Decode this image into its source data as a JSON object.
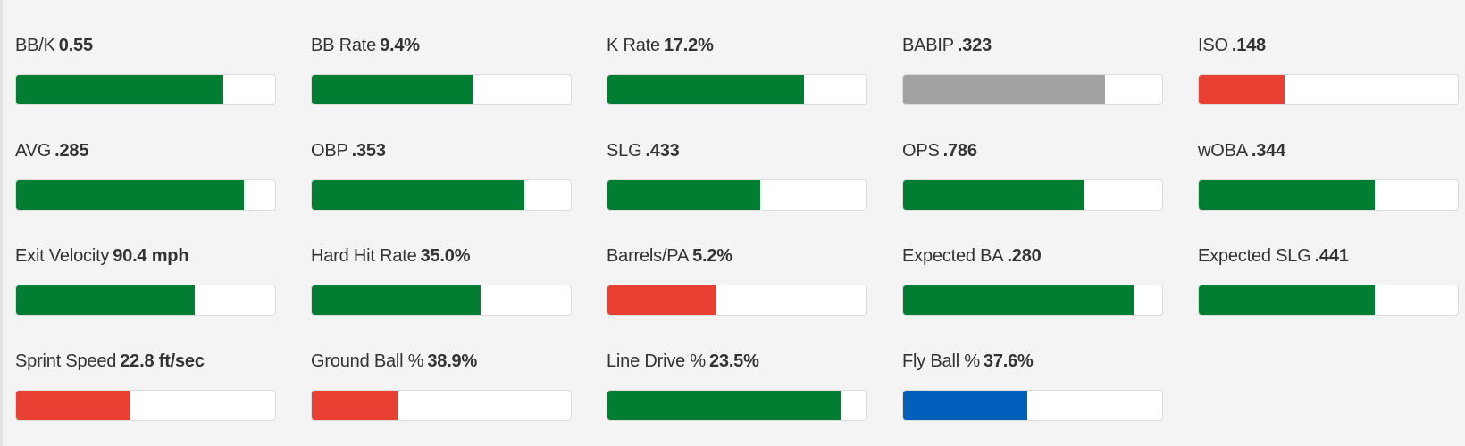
{
  "colors": {
    "green": "#017e32",
    "red": "#e84133",
    "gray": "#a2a2a2",
    "blue": "#0060bb",
    "track": "#ffffff",
    "background": "#f4f4f4"
  },
  "stats": [
    {
      "name": "BB/K",
      "value": "0.55",
      "fill_fraction": 0.8,
      "color": "#017e32"
    },
    {
      "name": "BB Rate",
      "value": "9.4%",
      "fill_fraction": 0.62,
      "color": "#017e32"
    },
    {
      "name": "K Rate",
      "value": "17.2%",
      "fill_fraction": 0.76,
      "color": "#017e32"
    },
    {
      "name": "BABIP",
      "value": ".323",
      "fill_fraction": 0.78,
      "color": "#a2a2a2"
    },
    {
      "name": "ISO",
      "value": ".148",
      "fill_fraction": 0.33,
      "color": "#e84133"
    },
    {
      "name": "AVG",
      "value": ".285",
      "fill_fraction": 0.88,
      "color": "#017e32"
    },
    {
      "name": "OBP",
      "value": ".353",
      "fill_fraction": 0.82,
      "color": "#017e32"
    },
    {
      "name": "SLG",
      "value": ".433",
      "fill_fraction": 0.59,
      "color": "#017e32"
    },
    {
      "name": "OPS",
      "value": ".786",
      "fill_fraction": 0.7,
      "color": "#017e32"
    },
    {
      "name": "wOBA",
      "value": ".344",
      "fill_fraction": 0.68,
      "color": "#017e32"
    },
    {
      "name": "Exit Velocity",
      "value": "90.4 mph",
      "fill_fraction": 0.69,
      "color": "#017e32"
    },
    {
      "name": "Hard Hit Rate",
      "value": "35.0%",
      "fill_fraction": 0.65,
      "color": "#017e32"
    },
    {
      "name": "Barrels/PA",
      "value": "5.2%",
      "fill_fraction": 0.42,
      "color": "#e84133"
    },
    {
      "name": "Expected BA",
      "value": ".280",
      "fill_fraction": 0.89,
      "color": "#017e32"
    },
    {
      "name": "Expected SLG",
      "value": ".441",
      "fill_fraction": 0.68,
      "color": "#017e32"
    },
    {
      "name": "Sprint Speed",
      "value": "22.8 ft/sec",
      "fill_fraction": 0.44,
      "color": "#e84133"
    },
    {
      "name": "Ground Ball %",
      "value": "38.9%",
      "fill_fraction": 0.33,
      "color": "#e84133"
    },
    {
      "name": "Line Drive %",
      "value": "23.5%",
      "fill_fraction": 0.9,
      "color": "#017e32"
    },
    {
      "name": "Fly Ball %",
      "value": "37.6%",
      "fill_fraction": 0.48,
      "color": "#0060bb"
    }
  ]
}
